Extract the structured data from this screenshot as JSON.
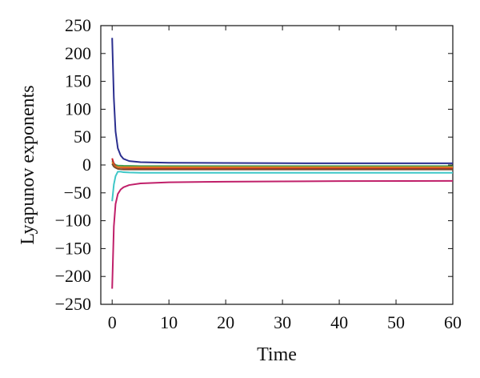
{
  "chart_data": {
    "type": "line",
    "title": "",
    "xlabel": "Time",
    "ylabel": "Lyapunov exponents",
    "xlim": [
      -2,
      60
    ],
    "ylim": [
      -250,
      250
    ],
    "xticks": [
      0,
      10,
      20,
      30,
      40,
      50,
      60
    ],
    "xtick_labels": [
      "0",
      "10",
      "20",
      "30",
      "40",
      "50",
      "60"
    ],
    "yticks": [
      250,
      200,
      150,
      100,
      50,
      0,
      -50,
      -100,
      -150,
      -200,
      -250
    ],
    "ytick_labels": [
      "250",
      "200",
      "150",
      "100",
      "50",
      "0",
      "−50",
      "−100",
      "−150",
      "−200",
      "−250"
    ],
    "grid": false,
    "legend": "none",
    "series": [
      {
        "color": "#2b2f8f",
        "x": [
          0,
          0.3,
          0.6,
          1,
          1.5,
          2,
          3,
          5,
          10,
          20,
          30,
          40,
          50,
          60
        ],
        "y": [
          228,
          120,
          60,
          30,
          17,
          11,
          7,
          5,
          4,
          3.5,
          3.2,
          3,
          3,
          3
        ]
      },
      {
        "color": "#3f9f4f",
        "x": [
          0,
          0.3,
          0.6,
          1,
          2,
          5,
          10,
          20,
          40,
          60
        ],
        "y": [
          8,
          3,
          0,
          -1,
          -1.5,
          -2,
          -2,
          -2,
          -2,
          -2
        ]
      },
      {
        "color": "#c8202a",
        "x": [
          0,
          0.3,
          0.6,
          1,
          2,
          5,
          10,
          20,
          40,
          60
        ],
        "y": [
          12,
          2,
          -2,
          -4,
          -5,
          -6,
          -6,
          -6,
          -6,
          -6
        ]
      },
      {
        "color": "#e07a20",
        "x": [
          0,
          0.3,
          0.6,
          1,
          2,
          5,
          10,
          20,
          40,
          60
        ],
        "y": [
          5,
          -1,
          -3,
          -4,
          -4,
          -4,
          -4,
          -4,
          -4,
          -4
        ]
      },
      {
        "color": "#7a4a2a",
        "x": [
          0,
          0.3,
          0.6,
          1,
          2,
          5,
          10,
          20,
          40,
          60
        ],
        "y": [
          2,
          -3,
          -5,
          -7,
          -8,
          -8,
          -8,
          -8,
          -8,
          -8
        ]
      },
      {
        "color": "#3fc7c7",
        "x": [
          0,
          0.3,
          0.6,
          1,
          1.5,
          2,
          3,
          5,
          10,
          20,
          40,
          60
        ],
        "y": [
          -65,
          -35,
          -20,
          -12,
          -12,
          -13,
          -13.5,
          -14,
          -14,
          -14,
          -14,
          -14
        ]
      },
      {
        "color": "#c0206a",
        "x": [
          0,
          0.3,
          0.6,
          1,
          1.5,
          2,
          3,
          5,
          10,
          20,
          30,
          40,
          60
        ],
        "y": [
          -222,
          -110,
          -70,
          -52,
          -44,
          -40,
          -36,
          -33,
          -31,
          -30,
          -29.5,
          -29,
          -28.5
        ]
      }
    ]
  }
}
